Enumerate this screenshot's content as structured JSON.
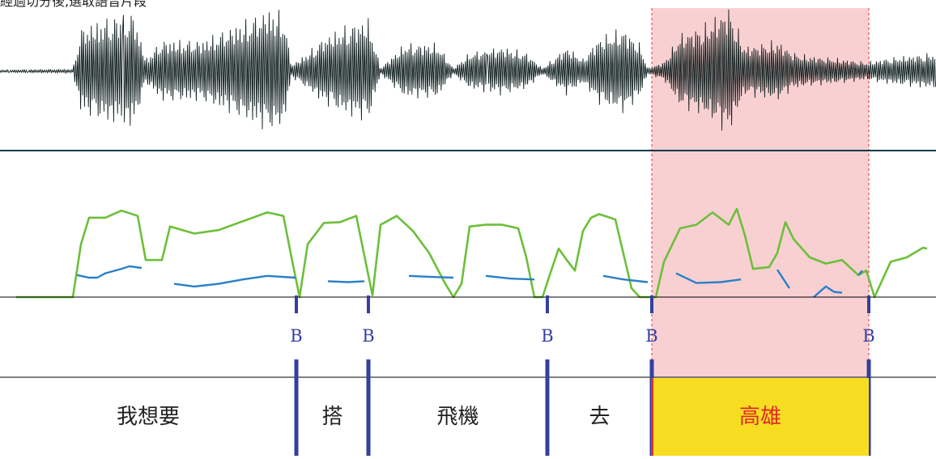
{
  "header_text": "經過切分後,選取語音片段",
  "colors": {
    "selection": "#f9d0d2",
    "selection_border": "#e03030",
    "boundary": "#3340a0",
    "pitch": "#2a7fc8",
    "energy": "#6cbf3a",
    "waveform": "#0b1a1a",
    "selected_segment_fill": "#f7dd22",
    "selected_segment_text": "#e02828",
    "segment_text": "#222222"
  },
  "boundaries": [
    {
      "label": "B",
      "time": 0.366
    },
    {
      "label": "B",
      "time": 0.455
    },
    {
      "label": "B",
      "time": 0.676
    },
    {
      "label": "B",
      "time": 0.805
    },
    {
      "label": "B",
      "time": 1.073
    }
  ],
  "segments": [
    {
      "text": "我想要",
      "start": 0.0,
      "end": 0.366,
      "selected": false
    },
    {
      "text": "搭",
      "start": 0.366,
      "end": 0.455,
      "selected": false
    },
    {
      "text": "飛機",
      "start": 0.455,
      "end": 0.676,
      "selected": false
    },
    {
      "text": "去",
      "start": 0.676,
      "end": 0.805,
      "selected": false
    },
    {
      "text": "高雄",
      "start": 0.805,
      "end": 1.073,
      "selected": true
    }
  ],
  "selection": {
    "start": 0.805,
    "end": 1.073
  },
  "duration": 1.156,
  "chart_data": {
    "type": "line",
    "title": "",
    "xlabel": "",
    "ylabel": "",
    "series": [
      {
        "key": "energy",
        "x": [
          0.02,
          0.09,
          0.1,
          0.11,
          0.13,
          0.15,
          0.17,
          0.18,
          0.2,
          0.21,
          0.24,
          0.27,
          0.3,
          0.33,
          0.35,
          0.36,
          0.37,
          0.38,
          0.4,
          0.42,
          0.44,
          0.46,
          0.47,
          0.49,
          0.51,
          0.53,
          0.55,
          0.56,
          0.57,
          0.58,
          0.6,
          0.62,
          0.64,
          0.65,
          0.66,
          0.67,
          0.68,
          0.69,
          0.7,
          0.71,
          0.72,
          0.73,
          0.74,
          0.76,
          0.78,
          0.79,
          0.8,
          0.81,
          0.82,
          0.84,
          0.86,
          0.88,
          0.9,
          0.91,
          0.92,
          0.93,
          0.95,
          0.96,
          0.97,
          0.98,
          1.0,
          1.02,
          1.04,
          1.06,
          1.07,
          1.08,
          1.09,
          1.1,
          1.12,
          1.14,
          1.145
        ],
        "values": [
          0,
          0,
          0.6,
          0.9,
          0.9,
          0.98,
          0.92,
          0.42,
          0.42,
          0.8,
          0.72,
          0.76,
          0.86,
          0.96,
          0.92,
          0.45,
          0,
          0.6,
          0.84,
          0.85,
          0.92,
          0.02,
          0.82,
          0.92,
          0.75,
          0.5,
          0.15,
          0,
          0.15,
          0.8,
          0.82,
          0.82,
          0.78,
          0.45,
          0,
          0,
          0.28,
          0.55,
          0.42,
          0.3,
          0.75,
          0.9,
          0.94,
          0.88,
          0.1,
          0,
          0,
          0,
          0.4,
          0.78,
          0.82,
          0.96,
          0.82,
          1.0,
          0.7,
          0.32,
          0.34,
          0.5,
          0.85,
          0.66,
          0.45,
          0.38,
          0.42,
          0.25,
          0.3,
          0,
          0.2,
          0.4,
          0.45,
          0.56,
          0.55
        ]
      },
      {
        "key": "pitch",
        "x": [
          0.095,
          0.11,
          0.12,
          0.13,
          0.15,
          0.16,
          0.175,
          null,
          0.215,
          0.24,
          0.27,
          0.3,
          0.33,
          0.365,
          null,
          0.405,
          0.43,
          0.45,
          null,
          0.505,
          0.53,
          0.56,
          null,
          0.6,
          0.63,
          0.66,
          null,
          0.745,
          0.77,
          0.8,
          null,
          0.835,
          0.86,
          0.89,
          0.915,
          null,
          0.96,
          0.975,
          null,
          1.005,
          1.02,
          1.03,
          1.04,
          null,
          1.06,
          1.065
        ],
        "values": [
          0.25,
          0.22,
          0.22,
          0.27,
          0.32,
          0.35,
          0.33,
          null,
          0.15,
          0.12,
          0.15,
          0.2,
          0.24,
          0.22,
          null,
          0.18,
          0.17,
          0.18,
          null,
          0.24,
          0.23,
          0.22,
          null,
          0.24,
          0.21,
          0.2,
          null,
          0.24,
          0.2,
          0.17,
          null,
          0.27,
          0.16,
          0.17,
          0.2,
          null,
          0.31,
          0.1,
          null,
          0.0,
          0.12,
          0.06,
          0.05,
          null,
          0.25,
          0.3
        ]
      }
    ]
  }
}
